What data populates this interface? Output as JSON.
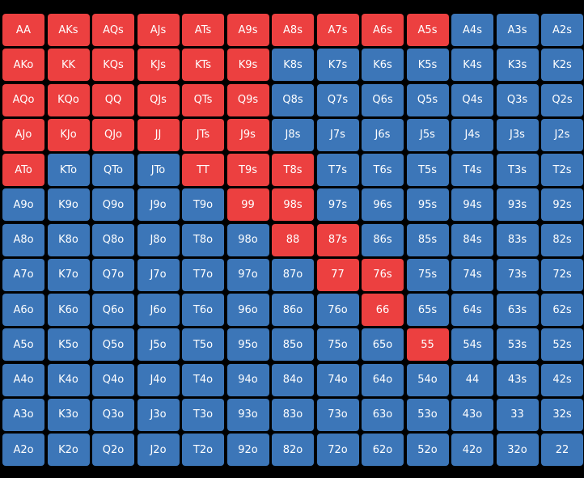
{
  "colors": {
    "background": "#000000",
    "red": "#ec4040",
    "blue": "#3c76b8",
    "text": "#ffffff"
  },
  "grid": {
    "rows": [
      [
        {
          "label": "AA",
          "color": "red"
        },
        {
          "label": "AKs",
          "color": "red"
        },
        {
          "label": "AQs",
          "color": "red"
        },
        {
          "label": "AJs",
          "color": "red"
        },
        {
          "label": "ATs",
          "color": "red"
        },
        {
          "label": "A9s",
          "color": "red"
        },
        {
          "label": "A8s",
          "color": "red"
        },
        {
          "label": "A7s",
          "color": "red"
        },
        {
          "label": "A6s",
          "color": "red"
        },
        {
          "label": "A5s",
          "color": "red"
        },
        {
          "label": "A4s",
          "color": "blue"
        },
        {
          "label": "A3s",
          "color": "blue"
        },
        {
          "label": "A2s",
          "color": "blue"
        }
      ],
      [
        {
          "label": "AKo",
          "color": "red"
        },
        {
          "label": "KK",
          "color": "red"
        },
        {
          "label": "KQs",
          "color": "red"
        },
        {
          "label": "KJs",
          "color": "red"
        },
        {
          "label": "KTs",
          "color": "red"
        },
        {
          "label": "K9s",
          "color": "red"
        },
        {
          "label": "K8s",
          "color": "blue"
        },
        {
          "label": "K7s",
          "color": "blue"
        },
        {
          "label": "K6s",
          "color": "blue"
        },
        {
          "label": "K5s",
          "color": "blue"
        },
        {
          "label": "K4s",
          "color": "blue"
        },
        {
          "label": "K3s",
          "color": "blue"
        },
        {
          "label": "K2s",
          "color": "blue"
        }
      ],
      [
        {
          "label": "AQo",
          "color": "red"
        },
        {
          "label": "KQo",
          "color": "red"
        },
        {
          "label": "QQ",
          "color": "red"
        },
        {
          "label": "QJs",
          "color": "red"
        },
        {
          "label": "QTs",
          "color": "red"
        },
        {
          "label": "Q9s",
          "color": "red"
        },
        {
          "label": "Q8s",
          "color": "blue"
        },
        {
          "label": "Q7s",
          "color": "blue"
        },
        {
          "label": "Q6s",
          "color": "blue"
        },
        {
          "label": "Q5s",
          "color": "blue"
        },
        {
          "label": "Q4s",
          "color": "blue"
        },
        {
          "label": "Q3s",
          "color": "blue"
        },
        {
          "label": "Q2s",
          "color": "blue"
        }
      ],
      [
        {
          "label": "AJo",
          "color": "red"
        },
        {
          "label": "KJo",
          "color": "red"
        },
        {
          "label": "QJo",
          "color": "red"
        },
        {
          "label": "JJ",
          "color": "red"
        },
        {
          "label": "JTs",
          "color": "red"
        },
        {
          "label": "J9s",
          "color": "red"
        },
        {
          "label": "J8s",
          "color": "blue"
        },
        {
          "label": "J7s",
          "color": "blue"
        },
        {
          "label": "J6s",
          "color": "blue"
        },
        {
          "label": "J5s",
          "color": "blue"
        },
        {
          "label": "J4s",
          "color": "blue"
        },
        {
          "label": "J3s",
          "color": "blue"
        },
        {
          "label": "J2s",
          "color": "blue"
        }
      ],
      [
        {
          "label": "ATo",
          "color": "red"
        },
        {
          "label": "KTo",
          "color": "blue"
        },
        {
          "label": "QTo",
          "color": "blue"
        },
        {
          "label": "JTo",
          "color": "blue"
        },
        {
          "label": "TT",
          "color": "red"
        },
        {
          "label": "T9s",
          "color": "red"
        },
        {
          "label": "T8s",
          "color": "red"
        },
        {
          "label": "T7s",
          "color": "blue"
        },
        {
          "label": "T6s",
          "color": "blue"
        },
        {
          "label": "T5s",
          "color": "blue"
        },
        {
          "label": "T4s",
          "color": "blue"
        },
        {
          "label": "T3s",
          "color": "blue"
        },
        {
          "label": "T2s",
          "color": "blue"
        }
      ],
      [
        {
          "label": "A9o",
          "color": "blue"
        },
        {
          "label": "K9o",
          "color": "blue"
        },
        {
          "label": "Q9o",
          "color": "blue"
        },
        {
          "label": "J9o",
          "color": "blue"
        },
        {
          "label": "T9o",
          "color": "blue"
        },
        {
          "label": "99",
          "color": "red"
        },
        {
          "label": "98s",
          "color": "red"
        },
        {
          "label": "97s",
          "color": "blue"
        },
        {
          "label": "96s",
          "color": "blue"
        },
        {
          "label": "95s",
          "color": "blue"
        },
        {
          "label": "94s",
          "color": "blue"
        },
        {
          "label": "93s",
          "color": "blue"
        },
        {
          "label": "92s",
          "color": "blue"
        }
      ],
      [
        {
          "label": "A8o",
          "color": "blue"
        },
        {
          "label": "K8o",
          "color": "blue"
        },
        {
          "label": "Q8o",
          "color": "blue"
        },
        {
          "label": "J8o",
          "color": "blue"
        },
        {
          "label": "T8o",
          "color": "blue"
        },
        {
          "label": "98o",
          "color": "blue"
        },
        {
          "label": "88",
          "color": "red"
        },
        {
          "label": "87s",
          "color": "red"
        },
        {
          "label": "86s",
          "color": "blue"
        },
        {
          "label": "85s",
          "color": "blue"
        },
        {
          "label": "84s",
          "color": "blue"
        },
        {
          "label": "83s",
          "color": "blue"
        },
        {
          "label": "82s",
          "color": "blue"
        }
      ],
      [
        {
          "label": "A7o",
          "color": "blue"
        },
        {
          "label": "K7o",
          "color": "blue"
        },
        {
          "label": "Q7o",
          "color": "blue"
        },
        {
          "label": "J7o",
          "color": "blue"
        },
        {
          "label": "T7o",
          "color": "blue"
        },
        {
          "label": "97o",
          "color": "blue"
        },
        {
          "label": "87o",
          "color": "blue"
        },
        {
          "label": "77",
          "color": "red"
        },
        {
          "label": "76s",
          "color": "red"
        },
        {
          "label": "75s",
          "color": "blue"
        },
        {
          "label": "74s",
          "color": "blue"
        },
        {
          "label": "73s",
          "color": "blue"
        },
        {
          "label": "72s",
          "color": "blue"
        }
      ],
      [
        {
          "label": "A6o",
          "color": "blue"
        },
        {
          "label": "K6o",
          "color": "blue"
        },
        {
          "label": "Q6o",
          "color": "blue"
        },
        {
          "label": "J6o",
          "color": "blue"
        },
        {
          "label": "T6o",
          "color": "blue"
        },
        {
          "label": "96o",
          "color": "blue"
        },
        {
          "label": "86o",
          "color": "blue"
        },
        {
          "label": "76o",
          "color": "blue"
        },
        {
          "label": "66",
          "color": "red"
        },
        {
          "label": "65s",
          "color": "blue"
        },
        {
          "label": "64s",
          "color": "blue"
        },
        {
          "label": "63s",
          "color": "blue"
        },
        {
          "label": "62s",
          "color": "blue"
        }
      ],
      [
        {
          "label": "A5o",
          "color": "blue"
        },
        {
          "label": "K5o",
          "color": "blue"
        },
        {
          "label": "Q5o",
          "color": "blue"
        },
        {
          "label": "J5o",
          "color": "blue"
        },
        {
          "label": "T5o",
          "color": "blue"
        },
        {
          "label": "95o",
          "color": "blue"
        },
        {
          "label": "85o",
          "color": "blue"
        },
        {
          "label": "75o",
          "color": "blue"
        },
        {
          "label": "65o",
          "color": "blue"
        },
        {
          "label": "55",
          "color": "red"
        },
        {
          "label": "54s",
          "color": "blue"
        },
        {
          "label": "53s",
          "color": "blue"
        },
        {
          "label": "52s",
          "color": "blue"
        }
      ],
      [
        {
          "label": "A4o",
          "color": "blue"
        },
        {
          "label": "K4o",
          "color": "blue"
        },
        {
          "label": "Q4o",
          "color": "blue"
        },
        {
          "label": "J4o",
          "color": "blue"
        },
        {
          "label": "T4o",
          "color": "blue"
        },
        {
          "label": "94o",
          "color": "blue"
        },
        {
          "label": "84o",
          "color": "blue"
        },
        {
          "label": "74o",
          "color": "blue"
        },
        {
          "label": "64o",
          "color": "blue"
        },
        {
          "label": "54o",
          "color": "blue"
        },
        {
          "label": "44",
          "color": "blue"
        },
        {
          "label": "43s",
          "color": "blue"
        },
        {
          "label": "42s",
          "color": "blue"
        }
      ],
      [
        {
          "label": "A3o",
          "color": "blue"
        },
        {
          "label": "K3o",
          "color": "blue"
        },
        {
          "label": "Q3o",
          "color": "blue"
        },
        {
          "label": "J3o",
          "color": "blue"
        },
        {
          "label": "T3o",
          "color": "blue"
        },
        {
          "label": "93o",
          "color": "blue"
        },
        {
          "label": "83o",
          "color": "blue"
        },
        {
          "label": "73o",
          "color": "blue"
        },
        {
          "label": "63o",
          "color": "blue"
        },
        {
          "label": "53o",
          "color": "blue"
        },
        {
          "label": "43o",
          "color": "blue"
        },
        {
          "label": "33",
          "color": "blue"
        },
        {
          "label": "32s",
          "color": "blue"
        }
      ],
      [
        {
          "label": "A2o",
          "color": "blue"
        },
        {
          "label": "K2o",
          "color": "blue"
        },
        {
          "label": "Q2o",
          "color": "blue"
        },
        {
          "label": "J2o",
          "color": "blue"
        },
        {
          "label": "T2o",
          "color": "blue"
        },
        {
          "label": "92o",
          "color": "blue"
        },
        {
          "label": "82o",
          "color": "blue"
        },
        {
          "label": "72o",
          "color": "blue"
        },
        {
          "label": "62o",
          "color": "blue"
        },
        {
          "label": "52o",
          "color": "blue"
        },
        {
          "label": "42o",
          "color": "blue"
        },
        {
          "label": "32o",
          "color": "blue"
        },
        {
          "label": "22",
          "color": "blue"
        }
      ]
    ]
  }
}
